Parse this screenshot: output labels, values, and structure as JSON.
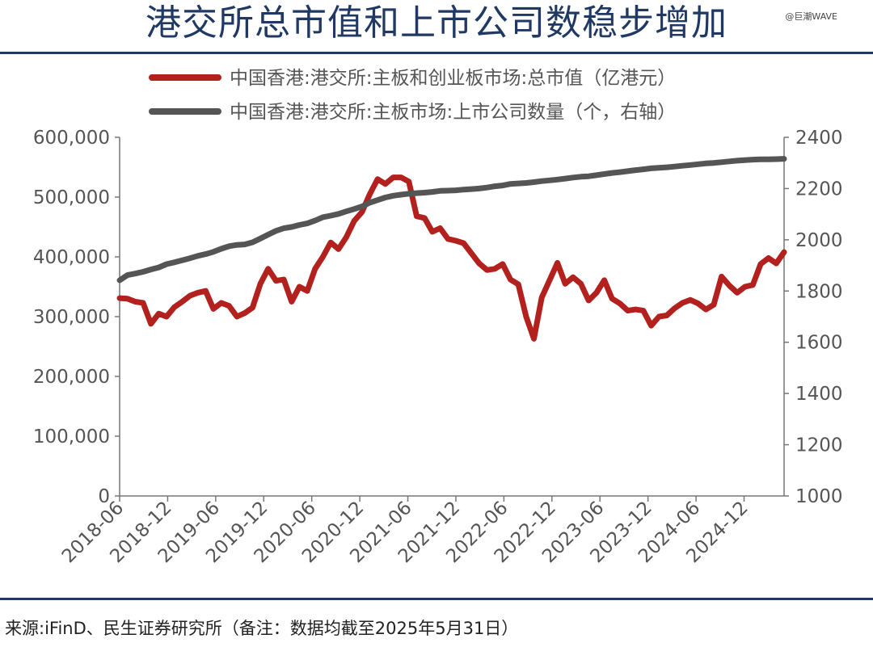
{
  "header": {
    "title": "港交所总市值和上市公司数稳步增加",
    "watermark": "@巨潮WAVE"
  },
  "footer": {
    "source": "来源:iFinD、民生证券研究所（备注：数据均截至2025年5月31日）"
  },
  "colors": {
    "market_cap": "#b3211e",
    "company_count": "#555555",
    "title": "#1f3864"
  },
  "chart_data": {
    "type": "line",
    "title": "港交所总市值和上市公司数稳步增加",
    "legend_position": "top-center",
    "grid": false,
    "x_tick_labels": [
      "2018-06",
      "2018-12",
      "2019-06",
      "2019-12",
      "2020-06",
      "2020-12",
      "2021-06",
      "2021-12",
      "2022-06",
      "2022-12",
      "2023-06",
      "2023-12",
      "2024-06",
      "2024-12"
    ],
    "x_start": "2018-06",
    "x_end": "2025-05",
    "y_left": {
      "min": 0,
      "max": 600000,
      "ticks": [
        "0",
        "100,000",
        "200,000",
        "300,000",
        "400,000",
        "500,000",
        "600,000"
      ]
    },
    "y_right": {
      "min": 1000,
      "max": 2400,
      "ticks": [
        "1000",
        "1200",
        "1400",
        "1600",
        "1800",
        "2000",
        "2200",
        "2400"
      ]
    },
    "series": [
      {
        "name": "中国香港:港交所:主板和创业板市场:总市值（亿港元）",
        "axis": "left",
        "color": "#b3211e",
        "values": [
          331000,
          330000,
          325000,
          323000,
          288000,
          305000,
          300000,
          316000,
          325000,
          335000,
          340000,
          343000,
          313000,
          323000,
          318000,
          300000,
          306000,
          315000,
          355000,
          380000,
          360000,
          362000,
          325000,
          350000,
          343000,
          380000,
          400000,
          424000,
          413000,
          433000,
          460000,
          475000,
          505000,
          530000,
          522000,
          533000,
          533000,
          526000,
          468000,
          465000,
          442000,
          448000,
          430000,
          427000,
          423000,
          406000,
          389000,
          378000,
          380000,
          388000,
          362000,
          354000,
          300000,
          263000,
          332000,
          361000,
          390000,
          355000,
          366000,
          355000,
          327000,
          340000,
          361000,
          330000,
          322000,
          310000,
          312000,
          310000,
          285000,
          300000,
          302000,
          314000,
          323000,
          328000,
          322000,
          312000,
          320000,
          367000,
          352000,
          340000,
          350000,
          353000,
          388000,
          398000,
          389000,
          408000
        ]
      },
      {
        "name": "中国香港:港交所:主板市场:上市公司数量（个，右轴）",
        "axis": "right",
        "color": "#555555",
        "values": [
          1842,
          1862,
          1868,
          1875,
          1884,
          1892,
          1905,
          1912,
          1920,
          1928,
          1937,
          1944,
          1953,
          1965,
          1975,
          1980,
          1982,
          1990,
          2005,
          2020,
          2035,
          2045,
          2050,
          2058,
          2064,
          2075,
          2088,
          2094,
          2101,
          2111,
          2120,
          2130,
          2145,
          2155,
          2165,
          2172,
          2176,
          2180,
          2182,
          2184,
          2187,
          2191,
          2192,
          2193,
          2196,
          2198,
          2200,
          2204,
          2209,
          2212,
          2218,
          2220,
          2222,
          2225,
          2229,
          2232,
          2235,
          2239,
          2243,
          2246,
          2248,
          2252,
          2257,
          2261,
          2264,
          2268,
          2272,
          2275,
          2279,
          2281,
          2283,
          2286,
          2289,
          2292,
          2295,
          2298,
          2300,
          2303,
          2306,
          2309,
          2311,
          2313,
          2314,
          2314,
          2315,
          2316
        ]
      }
    ]
  }
}
